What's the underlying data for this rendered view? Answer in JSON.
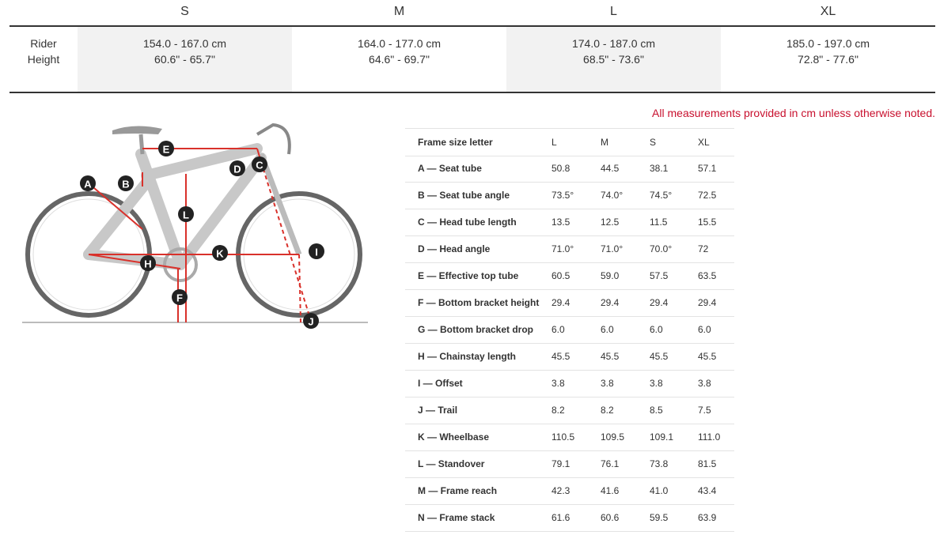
{
  "size_table": {
    "columns": [
      "S",
      "M",
      "L",
      "XL"
    ],
    "row_label": "Rider Height",
    "cells": [
      [
        "154.0 - 167.0 cm",
        "60.6\" - 65.7\""
      ],
      [
        "164.0 - 177.0 cm",
        "64.6\" - 69.7\""
      ],
      [
        "174.0 - 187.0 cm",
        "68.5\" - 73.6\""
      ],
      [
        "185.0 - 197.0 cm",
        "72.8\" - 77.6\""
      ]
    ]
  },
  "note": "All measurements provided in cm unless otherwise noted.",
  "diagram": {
    "labels": [
      "E",
      "D",
      "C",
      "A",
      "B",
      "L",
      "K",
      "H",
      "I",
      "F",
      "J"
    ]
  },
  "geometry_table": {
    "header": [
      "Frame size letter",
      "L",
      "M",
      "S",
      "XL"
    ],
    "rows": [
      [
        "A — Seat tube",
        "50.8",
        "44.5",
        "38.1",
        "57.1"
      ],
      [
        "B — Seat tube angle",
        "73.5°",
        "74.0°",
        "74.5°",
        "72.5"
      ],
      [
        "C — Head tube length",
        "13.5",
        "12.5",
        "11.5",
        "15.5"
      ],
      [
        "D — Head angle",
        "71.0°",
        "71.0°",
        "70.0°",
        "72"
      ],
      [
        "E — Effective top tube",
        "60.5",
        "59.0",
        "57.5",
        "63.5"
      ],
      [
        "F — Bottom bracket height",
        "29.4",
        "29.4",
        "29.4",
        "29.4"
      ],
      [
        "G — Bottom bracket drop",
        "6.0",
        "6.0",
        "6.0",
        "6.0"
      ],
      [
        "H — Chainstay length",
        "45.5",
        "45.5",
        "45.5",
        "45.5"
      ],
      [
        "I — Offset",
        "3.8",
        "3.8",
        "3.8",
        "3.8"
      ],
      [
        "J — Trail",
        "8.2",
        "8.2",
        "8.5",
        "7.5"
      ],
      [
        "K — Wheelbase",
        "110.5",
        "109.5",
        "109.1",
        "111.0"
      ],
      [
        "L — Standover",
        "79.1",
        "76.1",
        "73.8",
        "81.5"
      ],
      [
        "M — Frame reach",
        "42.3",
        "41.6",
        "41.0",
        "43.4"
      ],
      [
        "N — Frame stack",
        "61.6",
        "60.6",
        "59.5",
        "63.9"
      ]
    ]
  }
}
